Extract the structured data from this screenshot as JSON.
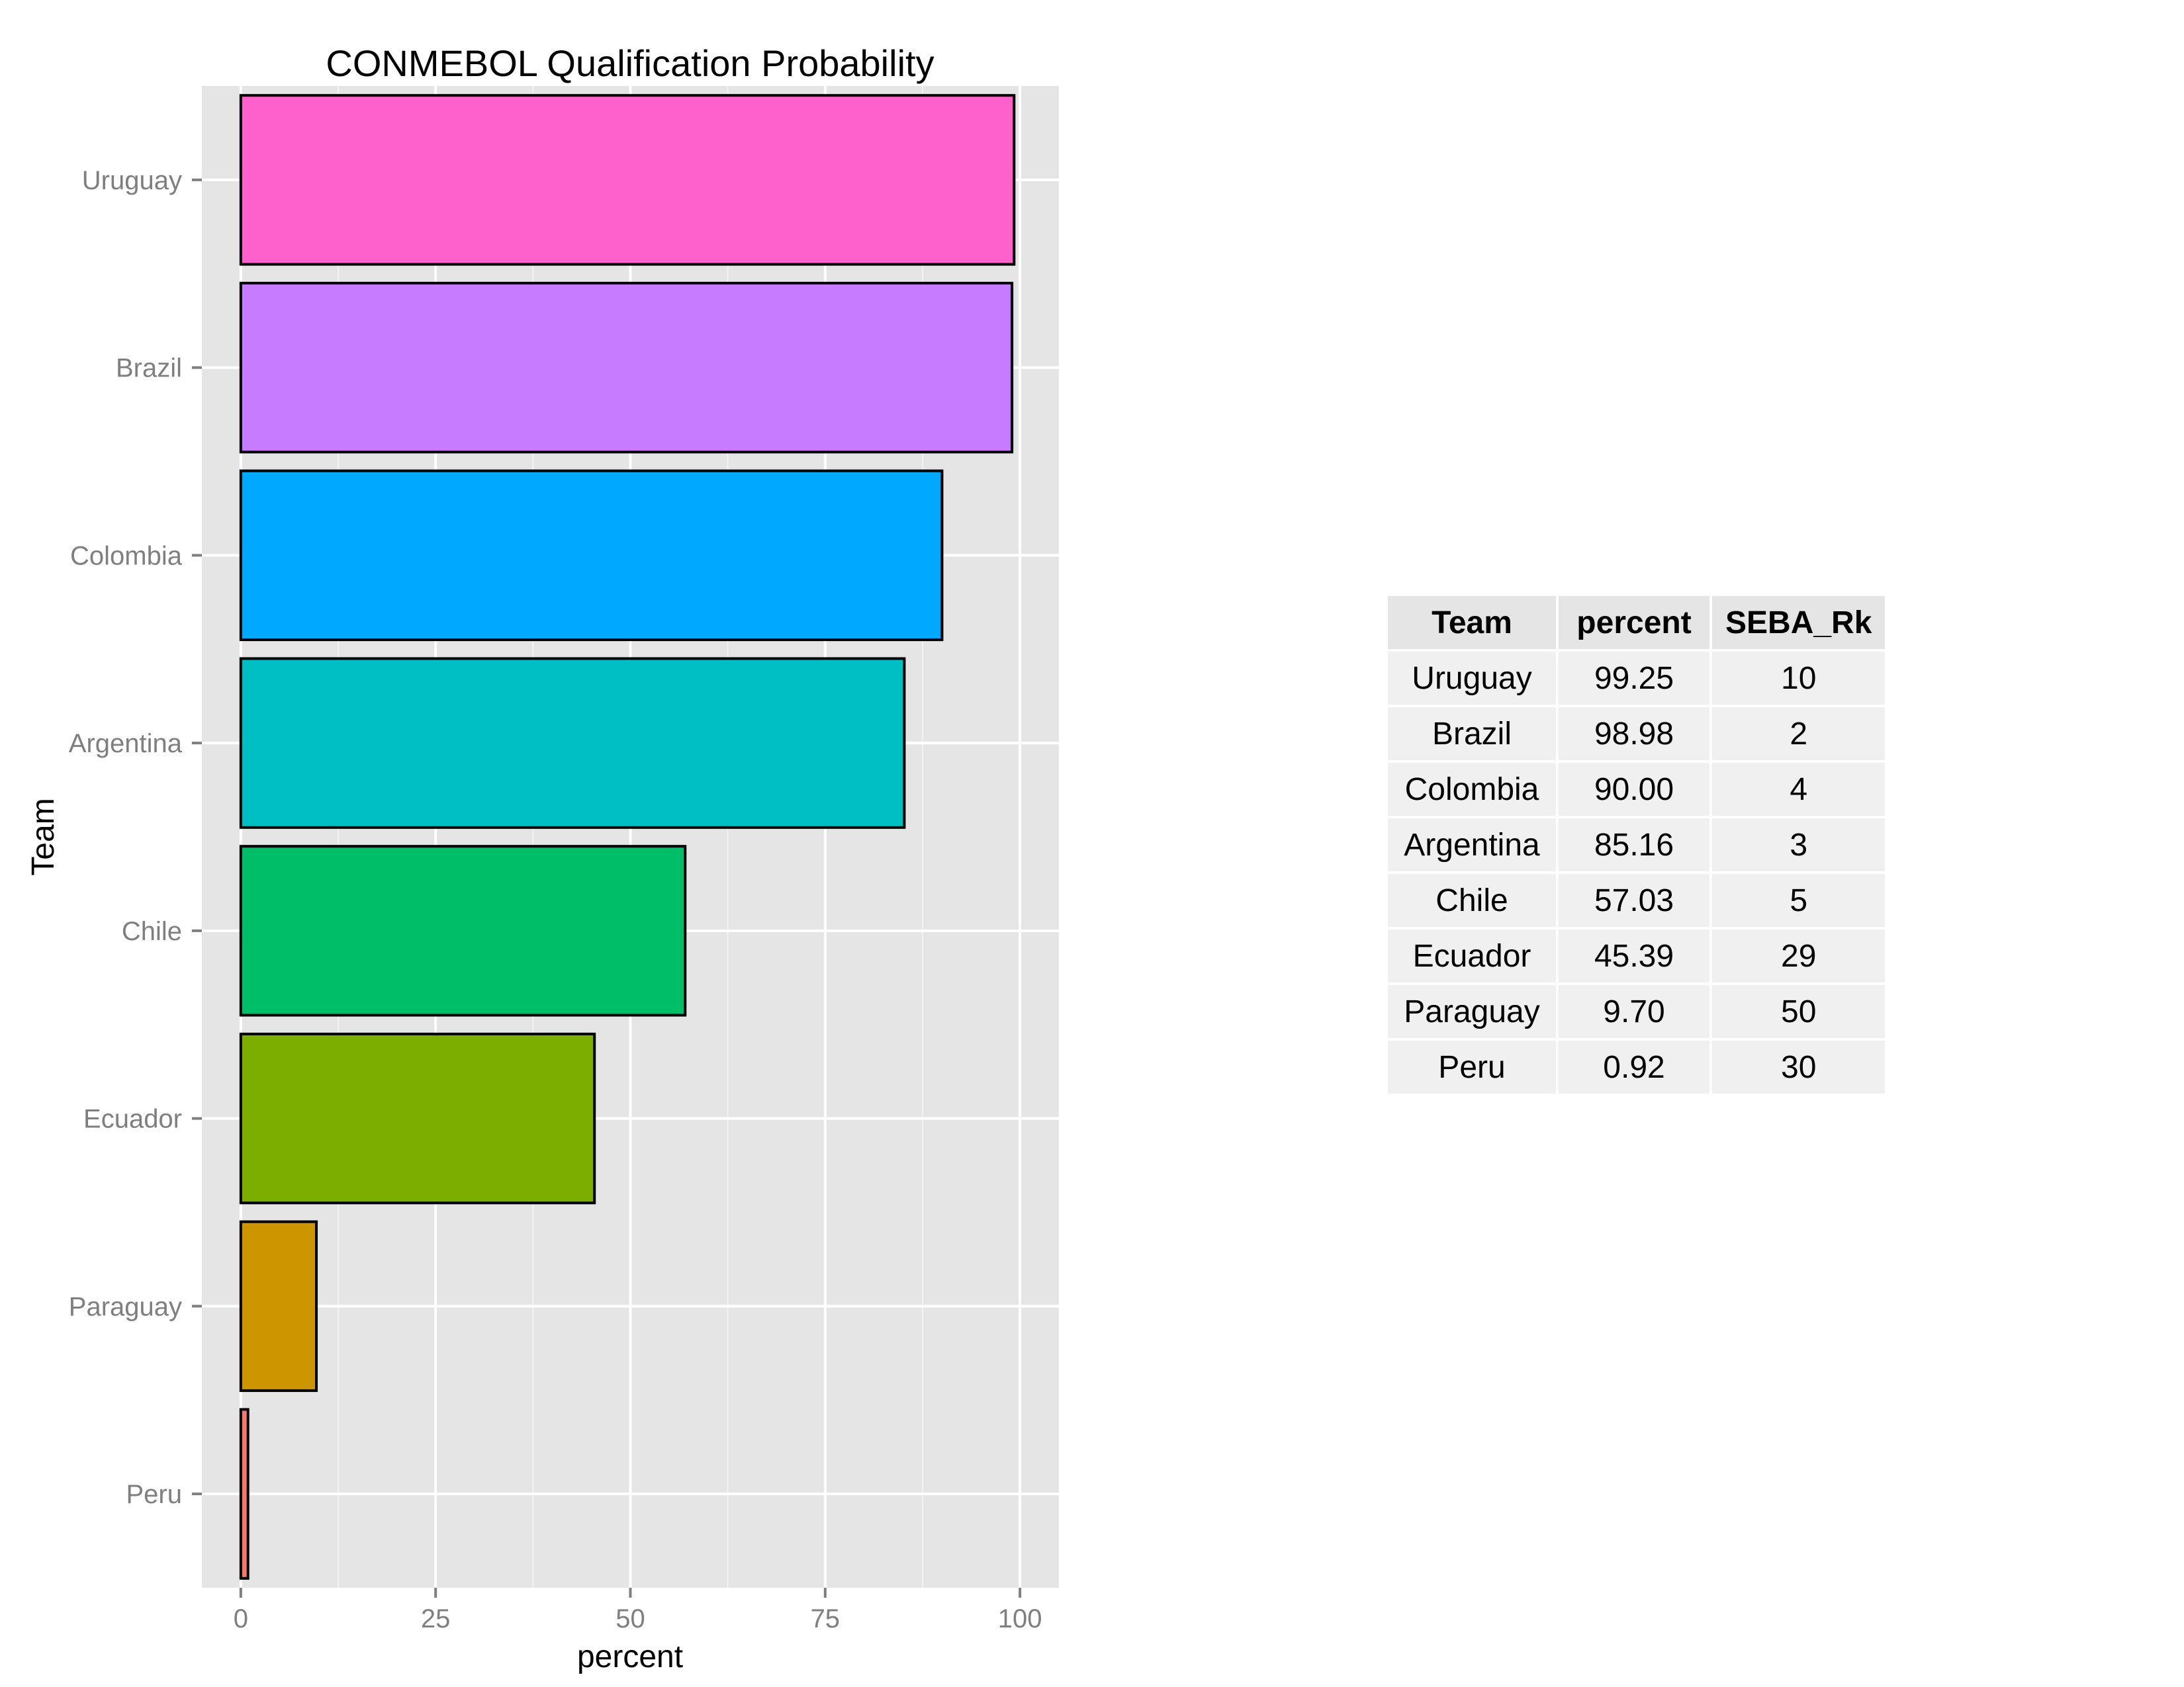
{
  "chart_data": {
    "type": "bar",
    "orientation": "horizontal",
    "title": "CONMEBOL Qualification Probability",
    "xlabel": "percent",
    "ylabel": "Team",
    "categories": [
      "Uruguay",
      "Brazil",
      "Colombia",
      "Argentina",
      "Chile",
      "Ecuador",
      "Paraguay",
      "Peru"
    ],
    "values": [
      99.25,
      98.98,
      90.0,
      85.16,
      57.03,
      45.39,
      9.7,
      0.92
    ],
    "colors": [
      "#FF61CC",
      "#C77CFF",
      "#00A9FF",
      "#00BFC4",
      "#00BE67",
      "#7CAE00",
      "#CD9600",
      "#F8766D"
    ],
    "xlim": [
      -5,
      105
    ],
    "xticks": [
      0,
      25,
      50,
      75,
      100
    ],
    "xtick_labels": [
      "0",
      "25",
      "50",
      "75",
      "100"
    ],
    "grid": true,
    "legend": "none"
  },
  "table": {
    "headers": [
      "Team",
      "percent",
      "SEBA_Rk"
    ],
    "rows": [
      [
        "Uruguay",
        "99.25",
        "10"
      ],
      [
        "Brazil",
        "98.98",
        "2"
      ],
      [
        "Colombia",
        "90.00",
        "4"
      ],
      [
        "Argentina",
        "85.16",
        "3"
      ],
      [
        "Chile",
        "57.03",
        "5"
      ],
      [
        "Ecuador",
        "45.39",
        "29"
      ],
      [
        "Paraguay",
        "9.70",
        "50"
      ],
      [
        "Peru",
        "0.92",
        "30"
      ]
    ]
  },
  "colors": {
    "panel_background": "#E5E5E5",
    "grid_line": "#FFFFFF",
    "bar_outline": "#000000",
    "tick_text": "#7F7F7F",
    "table_header_bg": "#E5E5E5",
    "table_cell_bg": "#F0F0F0"
  }
}
